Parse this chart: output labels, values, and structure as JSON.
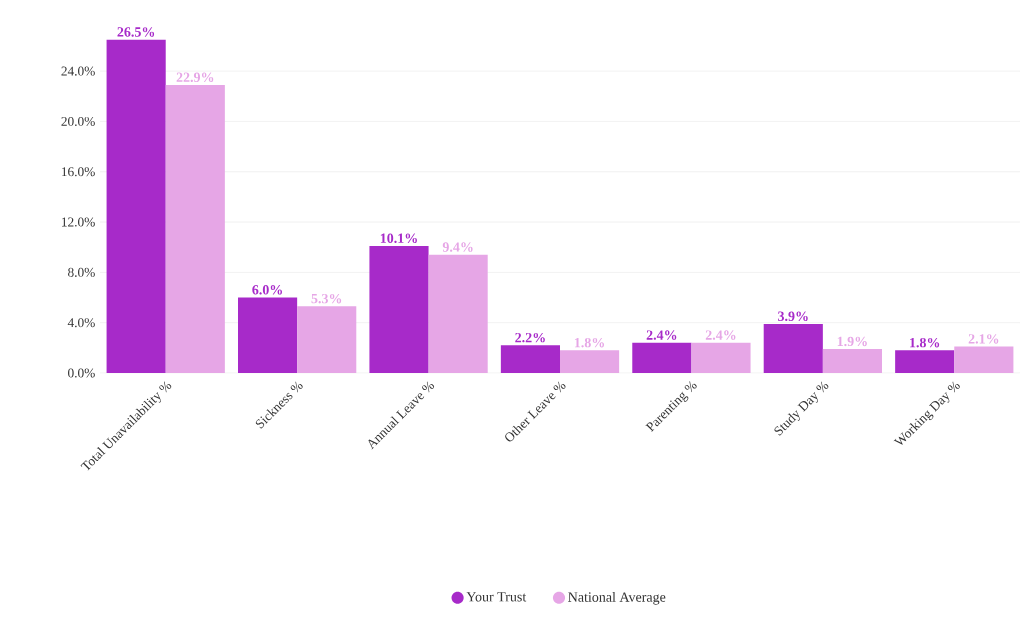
{
  "chart_data": {
    "type": "bar",
    "categories": [
      "Total Unavailability %",
      "Sickness %",
      "Annual Leave %",
      "Other Leave %",
      "Parenting %",
      "Study Day %",
      "Working Day %"
    ],
    "series": [
      {
        "name": "Your Trust",
        "color": "#a72ac9",
        "values": [
          26.5,
          6.0,
          10.1,
          2.2,
          2.4,
          3.9,
          1.8
        ],
        "value_labels": [
          "26.5%",
          "6.0%",
          "10.1%",
          "2.2%",
          "2.4%",
          "3.9%",
          "1.8%"
        ]
      },
      {
        "name": "National Average",
        "color": "#e6a6e6",
        "values": [
          22.9,
          5.3,
          9.4,
          1.8,
          2.4,
          1.9,
          2.1
        ],
        "value_labels": [
          "22.9%",
          "5.3%",
          "9.4%",
          "1.8%",
          "2.4%",
          "1.9%",
          "2.1%"
        ]
      }
    ],
    "ylim": [
      0,
      26.5
    ],
    "yticks": [
      {
        "value": 0,
        "label": "0.0%"
      },
      {
        "value": 4,
        "label": "4.0%"
      },
      {
        "value": 8,
        "label": "8.0%"
      },
      {
        "value": 12,
        "label": "12.0%"
      },
      {
        "value": 16,
        "label": "16.0%"
      },
      {
        "value": 20,
        "label": "20.0%"
      },
      {
        "value": 24,
        "label": "24.0%"
      }
    ],
    "grid": "y",
    "legend": "bottom"
  }
}
